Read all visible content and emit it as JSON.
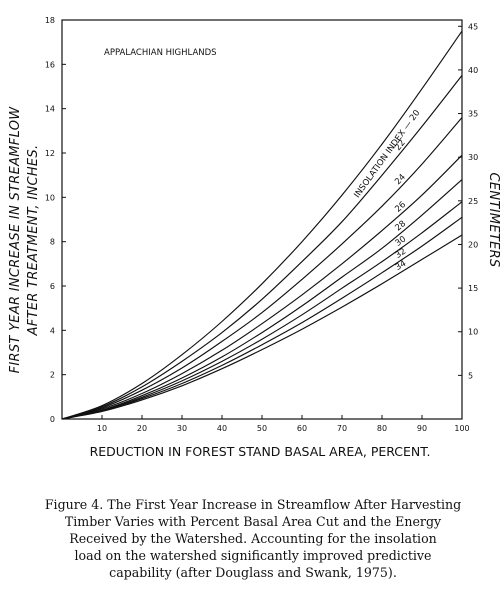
{
  "chart_data": {
    "type": "line",
    "title": "",
    "annotation": "APPALACHIAN HIGHLANDS",
    "xlabel": "REDUCTION IN FOREST STAND BASAL AREA, PERCENT.",
    "ylabel_line1": "FIRST YEAR INCREASE IN STREAMFLOW",
    "ylabel_line2": "AFTER TREATMENT, INCHES.",
    "y2label": "CENTIMETERS",
    "xlim": [
      0,
      100
    ],
    "ylim": [
      0,
      18
    ],
    "y2lim": [
      0,
      45.72
    ],
    "x_ticks": [
      "10",
      "20",
      "30",
      "40",
      "50",
      "60",
      "70",
      "80",
      "90",
      "100"
    ],
    "y_ticks": [
      "0",
      "2",
      "4",
      "6",
      "8",
      "10",
      "12",
      "14",
      "16",
      "18"
    ],
    "y2_ticks": [
      "5",
      "10",
      "15",
      "20",
      "25",
      "30",
      "35",
      "40",
      "45"
    ],
    "series_label_prefix": "INSOLATION INDEX — ",
    "x": [
      0,
      10,
      20,
      30,
      40,
      50,
      60,
      70,
      80,
      90,
      100
    ],
    "series": [
      {
        "name": "20",
        "values": [
          0,
          0.6,
          1.6,
          2.9,
          4.4,
          6.1,
          8.0,
          10.1,
          12.4,
          14.9,
          17.5
        ]
      },
      {
        "name": "22",
        "values": [
          0,
          0.55,
          1.45,
          2.6,
          3.9,
          5.4,
          7.1,
          8.9,
          11.0,
          13.2,
          15.5
        ]
      },
      {
        "name": "24",
        "values": [
          0,
          0.5,
          1.3,
          2.3,
          3.5,
          4.8,
          6.3,
          7.9,
          9.6,
          11.5,
          13.6
        ]
      },
      {
        "name": "26",
        "values": [
          0,
          0.45,
          1.15,
          2.05,
          3.1,
          4.3,
          5.6,
          7.0,
          8.5,
          10.1,
          11.9
        ]
      },
      {
        "name": "28",
        "values": [
          0,
          0.4,
          1.05,
          1.85,
          2.8,
          3.9,
          5.1,
          6.4,
          7.7,
          9.2,
          10.8
        ]
      },
      {
        "name": "30",
        "values": [
          0,
          0.38,
          0.98,
          1.72,
          2.6,
          3.6,
          4.7,
          5.9,
          7.1,
          8.4,
          9.8
        ]
      },
      {
        "name": "32",
        "values": [
          0,
          0.36,
          0.92,
          1.6,
          2.42,
          3.35,
          4.35,
          5.45,
          6.6,
          7.8,
          9.1
        ]
      },
      {
        "name": "34",
        "values": [
          0,
          0.34,
          0.86,
          1.5,
          2.27,
          3.13,
          4.05,
          5.05,
          6.1,
          7.2,
          8.3
        ]
      }
    ]
  },
  "caption": {
    "line1": "Figure 4.  The First Year Increase in Streamflow After Harvesting",
    "line2": "Timber Varies with Percent Basal Area Cut and the Energy",
    "line3": "Received by the Watershed. Accounting for the insolation",
    "line4": "load on the watershed significantly improved predictive",
    "line5": "capability (after Douglass and Swank, 1975)."
  }
}
